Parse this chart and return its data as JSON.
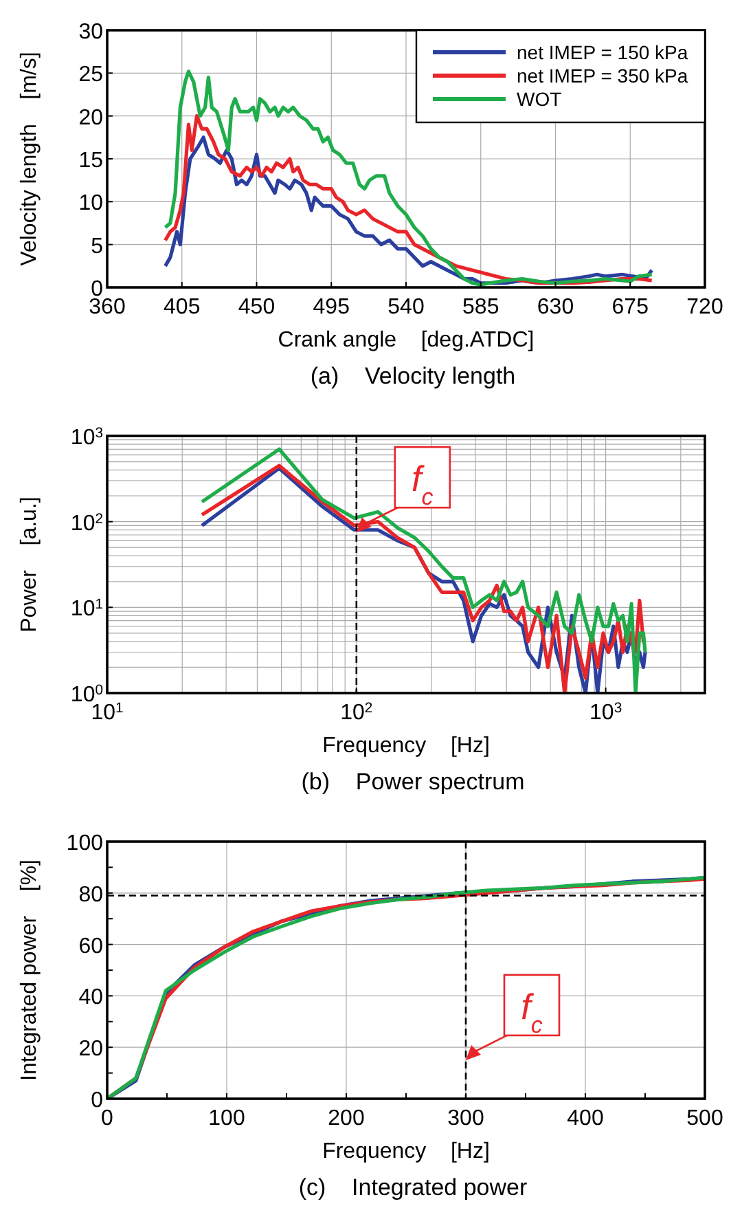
{
  "chart_data": [
    {
      "type": "line",
      "title": "(a)    Velocity length",
      "xlabel": "Crank angle    [deg.ATDC]",
      "ylabel": "Velocity length    [m/s]",
      "xlim": [
        360,
        720
      ],
      "xticks": [
        360,
        405,
        450,
        495,
        540,
        585,
        630,
        675,
        720
      ],
      "ylim": [
        0,
        30
      ],
      "yticks": [
        0,
        5,
        10,
        15,
        20,
        25,
        30
      ],
      "grid": true,
      "legend": "top right",
      "line_style": "solid",
      "series": [
        {
          "name": "net IMEP = 150 kPa",
          "color": "#2b3f9e",
          "x": [
            395,
            398,
            402,
            404,
            407,
            410,
            415,
            418,
            421,
            425,
            428,
            432,
            435,
            438,
            441,
            444,
            447,
            450,
            452,
            455,
            458,
            461,
            463,
            467,
            470,
            473,
            477,
            480,
            483,
            485,
            490,
            495,
            500,
            505,
            510,
            515,
            520,
            525,
            530,
            535,
            540,
            545,
            550,
            555,
            560,
            565,
            570,
            575,
            580,
            585,
            590,
            600,
            610,
            620,
            630,
            640,
            650,
            655,
            660,
            670,
            680,
            685,
            688
          ],
          "values": [
            2.5,
            3.5,
            6.5,
            5,
            11,
            15,
            16.5,
            17.5,
            15.5,
            15,
            14.5,
            16,
            15,
            12,
            12.5,
            12,
            13,
            15.5,
            13,
            13,
            12,
            11,
            12.5,
            12,
            11.5,
            12.5,
            12,
            11,
            9,
            10.5,
            9.5,
            9.5,
            8.5,
            8,
            6.5,
            6,
            6,
            5,
            5.5,
            4.5,
            4.5,
            3.5,
            2.5,
            3,
            2.5,
            2,
            1.5,
            1,
            1,
            0.5,
            0.5,
            0.5,
            0.8,
            0.5,
            0.8,
            1,
            1.3,
            1.5,
            1.3,
            1.5,
            1.2,
            1.2,
            2
          ]
        },
        {
          "name": "net IMEP = 350 kPa",
          "color": "#e8262a",
          "x": [
            395,
            398,
            401,
            404,
            406,
            409,
            411,
            414,
            417,
            420,
            424,
            427,
            431,
            435,
            440,
            444,
            447,
            450,
            453,
            456,
            459,
            462,
            466,
            470,
            472,
            475,
            478,
            482,
            486,
            490,
            495,
            498,
            502,
            505,
            510,
            515,
            520,
            525,
            530,
            535,
            540,
            545,
            550,
            555,
            560,
            565,
            570,
            580,
            590,
            600,
            610,
            620,
            630,
            640,
            650,
            660,
            670,
            680,
            688
          ],
          "values": [
            5.5,
            6.5,
            7,
            9,
            11,
            19,
            16,
            20,
            18.5,
            18.5,
            17,
            15.5,
            15,
            13.5,
            13,
            14,
            13.5,
            14,
            13,
            14,
            13.5,
            14.5,
            14,
            15,
            13.5,
            14,
            12.5,
            12,
            12,
            11.5,
            11.5,
            10.5,
            10,
            9,
            8.5,
            9,
            8,
            7.5,
            7,
            6.5,
            6.5,
            5,
            4.5,
            4,
            3.5,
            3,
            2.5,
            2,
            1.5,
            1,
            0.8,
            0.5,
            0.5,
            0.5,
            0.6,
            0.8,
            1,
            1,
            0.8
          ]
        },
        {
          "name": "WOT",
          "color": "#1fad4b",
          "x": [
            395,
            398,
            401,
            404,
            407,
            409,
            412,
            414,
            416,
            419,
            421,
            423,
            426,
            430,
            433,
            435,
            437,
            440,
            445,
            448,
            450,
            452,
            455,
            458,
            461,
            463,
            466,
            469,
            472,
            476,
            480,
            484,
            487,
            490,
            493,
            496,
            500,
            504,
            508,
            512,
            515,
            518,
            522,
            527,
            530,
            535,
            540,
            545,
            550,
            555,
            560,
            565,
            570,
            575,
            580,
            585,
            590,
            600,
            610,
            620,
            630,
            640,
            650,
            660,
            670,
            675,
            680,
            688
          ],
          "values": [
            7,
            7.5,
            11,
            21,
            24,
            25.2,
            24,
            22,
            20,
            21,
            24.5,
            21,
            20.5,
            18,
            16,
            21,
            22,
            20.5,
            20.5,
            21,
            19.5,
            22,
            21.5,
            20.5,
            21,
            20,
            21,
            20.5,
            21,
            20,
            19.5,
            18.5,
            18.5,
            17,
            17.5,
            16,
            15.5,
            14.5,
            14.5,
            12,
            11.5,
            12.5,
            13,
            13,
            11,
            9.5,
            8.5,
            7,
            6,
            4.5,
            3.5,
            3,
            2,
            1,
            0.5,
            0.3,
            0.5,
            0.8,
            1,
            0.7,
            0.5,
            0.7,
            0.8,
            1,
            0.8,
            0.7,
            1.3,
            1.5
          ]
        }
      ]
    },
    {
      "type": "line",
      "title": "(b)    Power spectrum",
      "xlabel": "Frequency    [Hz]",
      "ylabel": "Power    [a.u.]",
      "log": "xy",
      "xlim": [
        10,
        2500
      ],
      "xticks": [
        {
          "value": 10,
          "label": "10$^{1}$"
        },
        {
          "value": 100,
          "label": "10$^{2}$"
        },
        {
          "value": 1000,
          "label": "10$^{3}$"
        }
      ],
      "ylim": [
        1,
        1000
      ],
      "yticks": [
        {
          "value": 1,
          "label": "10$^{0}$"
        },
        {
          "value": 10,
          "label": "10$^{1}$"
        },
        {
          "value": 100,
          "label": "10$^{2}$"
        },
        {
          "value": 1000,
          "label": "10$^{3}$"
        }
      ],
      "grid": true,
      "line_style": "solid",
      "ref_lines": [
        {
          "axis": "x",
          "value": 100,
          "line_style": "dashed",
          "color": "#000000"
        }
      ],
      "annotations": [
        {
          "text": "f$_{c}$",
          "x": 100,
          "y": 75
        }
      ],
      "x": [
        24,
        49,
        73,
        98,
        122,
        146,
        171,
        195,
        220,
        244,
        269,
        293,
        317,
        342,
        366,
        391,
        415,
        439,
        464,
        488,
        537,
        586,
        635,
        684,
        732,
        781,
        830,
        879,
        928,
        977,
        1025,
        1074,
        1123,
        1172,
        1220,
        1269,
        1318,
        1367,
        1416,
        1440
      ],
      "series": [
        {
          "color": "#2b3f9e",
          "values": [
            90,
            420,
            150,
            80,
            80,
            60,
            50,
            25,
            20,
            20,
            12,
            4,
            8,
            11,
            10,
            14,
            8,
            7,
            6,
            3,
            2,
            10,
            3,
            1.5,
            8,
            2,
            1,
            5,
            1,
            4,
            3,
            6,
            2,
            4,
            3,
            5,
            2,
            3,
            2,
            3
          ]
        },
        {
          "color": "#e8262a",
          "values": [
            120,
            450,
            170,
            90,
            100,
            65,
            50,
            25,
            15,
            15,
            15,
            7,
            10,
            12,
            18,
            9,
            9,
            7,
            10,
            4,
            10,
            2,
            8,
            1,
            6,
            3,
            1.5,
            5,
            2,
            5,
            3,
            4,
            7,
            3,
            6,
            4,
            3,
            12,
            4,
            4
          ]
        },
        {
          "color": "#1fad4b",
          "values": [
            170,
            700,
            180,
            110,
            130,
            85,
            65,
            45,
            30,
            22,
            22,
            10,
            12,
            14,
            12,
            20,
            14,
            15,
            20,
            10,
            8,
            6,
            15,
            6,
            5,
            14,
            7,
            4,
            10,
            6,
            6,
            11,
            7,
            8,
            4,
            11,
            1,
            5,
            5,
            3
          ]
        }
      ]
    },
    {
      "type": "line",
      "title": "(c)    Integrated power",
      "xlabel": "Frequency    [Hz]",
      "ylabel": "Integrated power    [%]",
      "xlim": [
        0,
        500
      ],
      "xticks": [
        0,
        {
          "value": 50,
          "label": null
        },
        100,
        {
          "value": 150,
          "label": null
        },
        200,
        {
          "value": 250,
          "label": null
        },
        300,
        {
          "value": 350,
          "label": null
        },
        400,
        {
          "value": 450,
          "label": null
        },
        500
      ],
      "ylim": [
        0,
        100
      ],
      "yticks": [
        0,
        {
          "value": 10,
          "label": null
        },
        20,
        {
          "value": 30,
          "label": null
        },
        40,
        {
          "value": 50,
          "label": null
        },
        60,
        {
          "value": 70,
          "label": null
        },
        80,
        {
          "value": 90,
          "label": null
        },
        100
      ],
      "grid": true,
      "line_style": "solid",
      "ref_lines": [
        {
          "axis": "x",
          "value": 300,
          "line_style": "dashed",
          "color": "#000000"
        },
        {
          "axis": "y",
          "value": 79,
          "line_style": "dashed",
          "color": "#000000"
        }
      ],
      "annotations": [
        {
          "text": "f$_{c}$",
          "x": 300,
          "y": 15
        }
      ],
      "x": [
        0,
        24,
        49,
        73,
        98,
        122,
        146,
        171,
        195,
        220,
        244,
        269,
        293,
        317,
        342,
        366,
        391,
        415,
        439,
        464,
        488,
        500
      ],
      "series": [
        {
          "color": "#2b3f9e",
          "values": [
            0,
            7,
            41,
            52,
            59,
            64,
            69,
            72,
            75,
            77,
            78,
            79,
            80,
            80.5,
            81,
            82,
            82.5,
            83.5,
            84.5,
            85,
            85.5,
            86
          ]
        },
        {
          "color": "#e8262a",
          "values": [
            0,
            8,
            39,
            51,
            59,
            65,
            69,
            73,
            75,
            76.5,
            77.5,
            78,
            79,
            80,
            81,
            82,
            82.5,
            83,
            84,
            84.5,
            85,
            85.5
          ]
        },
        {
          "color": "#1fad4b",
          "values": [
            0,
            8,
            42,
            50,
            57,
            63,
            67,
            71,
            74,
            76,
            77.5,
            78.5,
            80,
            81,
            81.5,
            82,
            83,
            83.5,
            84,
            84.5,
            85.5,
            86
          ]
        }
      ]
    }
  ]
}
